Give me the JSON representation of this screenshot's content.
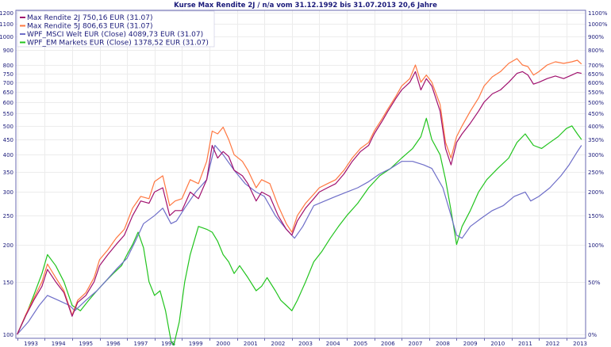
{
  "chart_data": {
    "type": "line",
    "title": "Kurse Max Rendite 2J / n/a vom 31.12.1992 bis 31.07.2013 20,6 Jahre",
    "xlabel": "",
    "ylabel": "",
    "y_scale": "log",
    "ylim": [
      97,
      1220
    ],
    "xlim": [
      1992.95,
      2013.7
    ],
    "y_ticks_left": [
      100,
      150,
      200,
      250,
      300,
      350,
      400,
      450,
      500,
      550,
      600,
      650,
      700,
      750,
      800,
      900,
      1000,
      1100,
      1200
    ],
    "y_tick_labels_right": [
      "0%",
      "50%",
      "100%",
      "150%",
      "200%",
      "250%",
      "300%",
      "350%",
      "400%",
      "450%",
      "500%",
      "550%",
      "600%",
      "650%",
      "700%",
      "800%",
      "900%",
      "1000%",
      "1100%"
    ],
    "x_tick_labels": [
      "1993",
      "1994",
      "1995",
      "1996",
      "1997",
      "1998",
      "1999",
      "2000",
      "2001",
      "2002",
      "2003",
      "2004",
      "2005",
      "2006",
      "2007",
      "2008",
      "2009",
      "2010",
      "2011",
      "2012",
      "2013"
    ],
    "grid": true,
    "legend_position": "top-left",
    "series": [
      {
        "name": "Max Rendite 2J 750,16 EUR (31.07)",
        "color": "#a0106e",
        "x": [
          1993.0,
          1993.3,
          1993.6,
          1993.9,
          1994.1,
          1994.4,
          1994.7,
          1995.0,
          1995.2,
          1995.5,
          1995.8,
          1996.0,
          1996.3,
          1996.6,
          1996.9,
          1997.2,
          1997.5,
          1997.8,
          1998.0,
          1998.3,
          1998.55,
          1998.75,
          1999.0,
          1999.3,
          1999.6,
          1999.9,
          2000.1,
          2000.3,
          2000.5,
          2000.7,
          2000.9,
          2001.2,
          2001.4,
          2001.7,
          2001.9,
          2002.2,
          2002.5,
          2002.8,
          2003.0,
          2003.2,
          2003.5,
          2003.8,
          2004.0,
          2004.3,
          2004.6,
          2004.9,
          2005.2,
          2005.5,
          2005.8,
          2006.0,
          2006.3,
          2006.5,
          2006.8,
          2007.0,
          2007.3,
          2007.5,
          2007.7,
          2007.9,
          2008.1,
          2008.4,
          2008.6,
          2008.8,
          2009.0,
          2009.2,
          2009.5,
          2009.8,
          2010.0,
          2010.3,
          2010.6,
          2010.9,
          2011.2,
          2011.4,
          2011.6,
          2011.8,
          2012.0,
          2012.3,
          2012.6,
          2012.9,
          2013.2,
          2013.4,
          2013.55
        ],
        "values": [
          100,
          115,
          130,
          145,
          165,
          150,
          138,
          115,
          128,
          135,
          150,
          170,
          185,
          200,
          215,
          250,
          280,
          275,
          300,
          310,
          250,
          260,
          260,
          300,
          285,
          330,
          430,
          390,
          410,
          395,
          355,
          340,
          320,
          280,
          300,
          290,
          250,
          225,
          215,
          240,
          265,
          285,
          300,
          310,
          320,
          345,
          380,
          410,
          430,
          470,
          520,
          560,
          620,
          660,
          700,
          760,
          660,
          720,
          680,
          560,
          420,
          370,
          440,
          470,
          510,
          560,
          600,
          640,
          660,
          700,
          750,
          760,
          740,
          690,
          700,
          720,
          735,
          720,
          740,
          755,
          750
        ]
      },
      {
        "name": "Max Rendite 5J 806,63 EUR (31.07)",
        "color": "#ff7740",
        "x": [
          1993.0,
          1993.3,
          1993.6,
          1993.9,
          1994.1,
          1994.4,
          1994.7,
          1995.0,
          1995.2,
          1995.5,
          1995.8,
          1996.0,
          1996.3,
          1996.6,
          1996.9,
          1997.2,
          1997.5,
          1997.8,
          1998.0,
          1998.3,
          1998.55,
          1998.75,
          1999.0,
          1999.3,
          1999.6,
          1999.9,
          2000.1,
          2000.3,
          2000.5,
          2000.7,
          2000.9,
          2001.2,
          2001.4,
          2001.7,
          2001.9,
          2002.2,
          2002.5,
          2002.8,
          2003.0,
          2003.2,
          2003.5,
          2003.8,
          2004.0,
          2004.3,
          2004.6,
          2004.9,
          2005.2,
          2005.5,
          2005.8,
          2006.0,
          2006.3,
          2006.5,
          2006.8,
          2007.0,
          2007.3,
          2007.5,
          2007.7,
          2007.9,
          2008.1,
          2008.4,
          2008.6,
          2008.8,
          2009.0,
          2009.2,
          2009.5,
          2009.8,
          2010.0,
          2010.3,
          2010.6,
          2010.9,
          2011.2,
          2011.4,
          2011.6,
          2011.8,
          2012.0,
          2012.3,
          2012.6,
          2012.9,
          2013.2,
          2013.4,
          2013.55
        ],
        "values": [
          100,
          116,
          132,
          150,
          172,
          155,
          140,
          116,
          130,
          138,
          155,
          178,
          192,
          210,
          225,
          265,
          290,
          285,
          325,
          340,
          270,
          280,
          285,
          330,
          320,
          380,
          480,
          470,
          495,
          450,
          400,
          380,
          355,
          310,
          330,
          320,
          270,
          235,
          220,
          250,
          275,
          295,
          310,
          320,
          330,
          355,
          390,
          420,
          440,
          480,
          530,
          570,
          630,
          680,
          720,
          800,
          700,
          740,
          700,
          590,
          440,
          390,
          460,
          500,
          560,
          620,
          680,
          730,
          760,
          810,
          840,
          800,
          790,
          740,
          760,
          800,
          820,
          810,
          820,
          830,
          806
        ]
      },
      {
        "name": "WPF_MSCI Welt EUR (Close) 4089,73 EUR (31.07)",
        "color": "#6e6ec8",
        "x": [
          1993.0,
          1993.4,
          1993.8,
          1994.1,
          1994.5,
          1994.9,
          1995.1,
          1995.5,
          1995.9,
          1996.2,
          1996.6,
          1997.0,
          1997.3,
          1997.6,
          1998.0,
          1998.3,
          1998.6,
          1998.8,
          1999.1,
          1999.5,
          1999.9,
          2000.2,
          2000.5,
          2000.9,
          2001.3,
          2001.7,
          2002.0,
          2002.4,
          2002.8,
          2003.1,
          2003.4,
          2003.8,
          2004.2,
          2004.6,
          2005.0,
          2005.4,
          2005.8,
          2006.2,
          2006.6,
          2007.0,
          2007.4,
          2007.8,
          2008.1,
          2008.5,
          2008.8,
          2009.0,
          2009.2,
          2009.5,
          2009.9,
          2010.3,
          2010.7,
          2011.1,
          2011.5,
          2011.7,
          2012.0,
          2012.4,
          2012.8,
          2013.1,
          2013.4,
          2013.55
        ],
        "values": [
          100,
          110,
          125,
          135,
          130,
          125,
          120,
          130,
          140,
          150,
          165,
          180,
          205,
          235,
          250,
          265,
          235,
          240,
          265,
          300,
          330,
          430,
          400,
          355,
          320,
          300,
          290,
          250,
          225,
          210,
          230,
          270,
          280,
          290,
          300,
          310,
          325,
          345,
          360,
          380,
          380,
          370,
          360,
          310,
          250,
          215,
          210,
          230,
          245,
          260,
          270,
          290,
          300,
          280,
          290,
          310,
          340,
          370,
          410,
          430
        ]
      },
      {
        "name": "WPF_EM Markets EUR (Close) 1378,52 EUR (31.07)",
        "color": "#22c41e",
        "x": [
          1993.0,
          1993.3,
          1993.6,
          1993.9,
          1994.1,
          1994.4,
          1994.7,
          1995.0,
          1995.3,
          1995.6,
          1995.9,
          1996.2,
          1996.5,
          1996.8,
          1997.0,
          1997.2,
          1997.4,
          1997.6,
          1997.8,
          1998.0,
          1998.2,
          1998.4,
          1998.6,
          1998.7,
          1998.9,
          1999.1,
          1999.3,
          1999.6,
          1999.9,
          2000.1,
          2000.3,
          2000.5,
          2000.7,
          2000.9,
          2001.1,
          2001.4,
          2001.7,
          2001.9,
          2002.1,
          2002.4,
          2002.6,
          2002.8,
          2003.0,
          2003.2,
          2003.5,
          2003.8,
          2004.1,
          2004.4,
          2004.7,
          2005.0,
          2005.4,
          2005.8,
          2006.2,
          2006.6,
          2007.0,
          2007.4,
          2007.7,
          2007.9,
          2008.1,
          2008.4,
          2008.6,
          2008.8,
          2009.0,
          2009.2,
          2009.5,
          2009.8,
          2010.1,
          2010.5,
          2010.9,
          2011.2,
          2011.5,
          2011.8,
          2012.1,
          2012.4,
          2012.7,
          2013.0,
          2013.2,
          2013.4,
          2013.55
        ],
        "values": [
          100,
          115,
          135,
          160,
          185,
          170,
          150,
          125,
          120,
          130,
          140,
          150,
          160,
          170,
          185,
          200,
          220,
          195,
          150,
          135,
          140,
          120,
          95,
          92,
          110,
          150,
          185,
          230,
          225,
          220,
          205,
          185,
          175,
          160,
          170,
          155,
          140,
          145,
          155,
          140,
          130,
          125,
          120,
          130,
          150,
          175,
          190,
          210,
          230,
          250,
          275,
          310,
          340,
          360,
          390,
          420,
          460,
          530,
          450,
          400,
          330,
          260,
          200,
          230,
          260,
          300,
          330,
          360,
          390,
          440,
          470,
          430,
          420,
          440,
          460,
          490,
          500,
          470,
          450
        ]
      }
    ]
  }
}
